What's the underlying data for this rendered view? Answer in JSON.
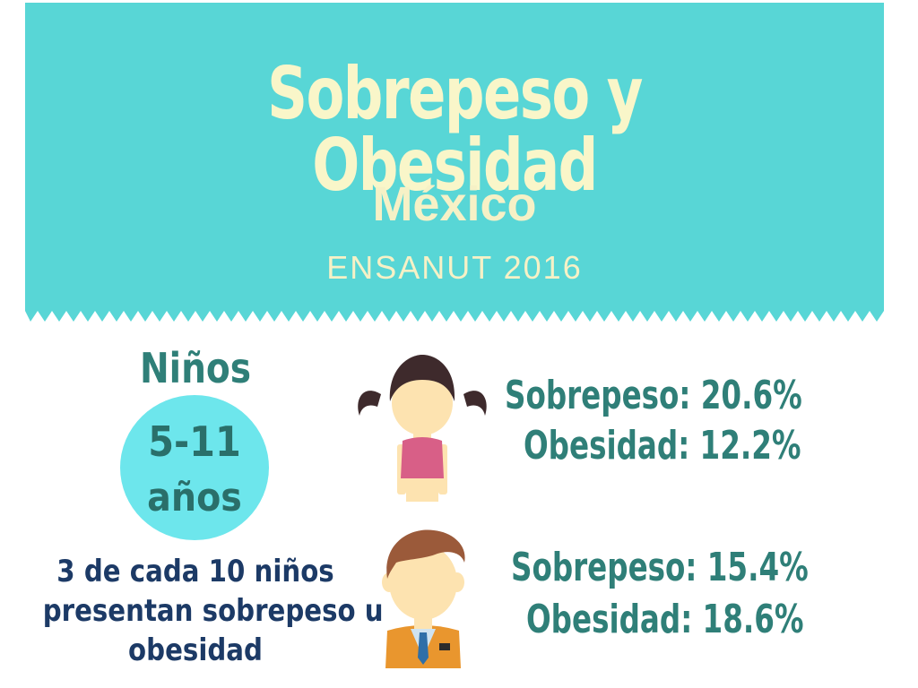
{
  "header": {
    "title": "Sobrepeso y Obesidad",
    "subtitle": "México",
    "survey": "ENSANUT  2016"
  },
  "group": {
    "title": "Niños",
    "age_range": "5-11",
    "age_unit": "años",
    "summary_lines": [
      "3 de cada 10 niños",
      "presentan sobrepeso u",
      "obesidad"
    ]
  },
  "girls": {
    "overweight": "Sobrepeso: 20.6%",
    "obesity": "Obesidad:  12.2%"
  },
  "boys": {
    "overweight": "Sobrepeso: 15.4%",
    "obesity": "Obesidad: 18.6%"
  },
  "colors": {
    "banner": "#58d6d6",
    "title_text": "#f9f6c9",
    "stat_text": "#2f7f78",
    "circle": "#6de6ec",
    "summary_text": "#1c3a66"
  },
  "icons": [
    "girl-icon",
    "boy-icon"
  ]
}
